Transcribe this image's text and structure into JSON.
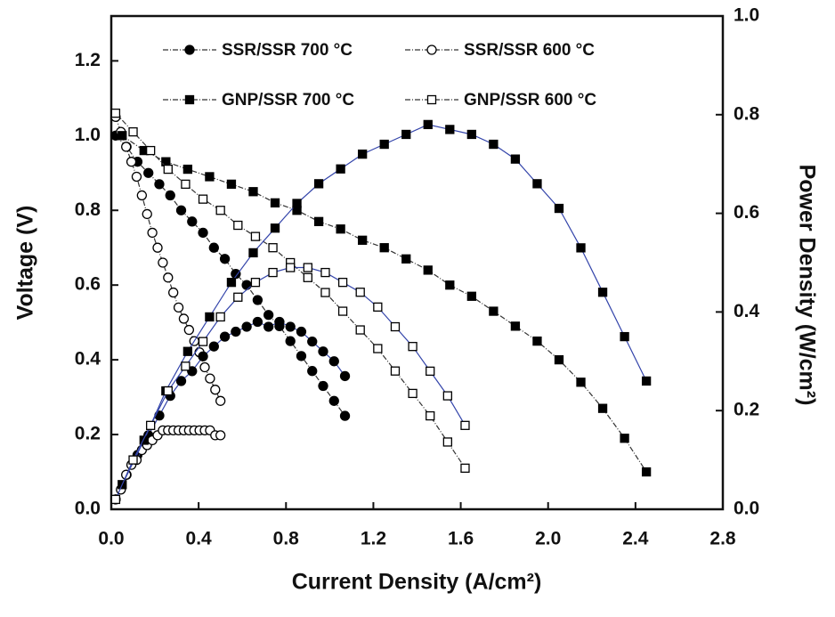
{
  "chart_data": {
    "type": "line",
    "x_label": "Current Density (A/cm²)",
    "y_label": "Voltage (V)",
    "y2_label": "Power Density (W/cm²)",
    "xlim": [
      0,
      2.8
    ],
    "ylim": [
      0,
      1.32
    ],
    "y2lim": [
      0,
      1.0
    ],
    "xticks": [
      {
        "value": 0,
        "label": "0.0"
      },
      0.4,
      0.8,
      1.2,
      1.6,
      {
        "value": 2,
        "label": "2.0"
      },
      2.4,
      2.8
    ],
    "yticks": [
      {
        "value": 0,
        "label": "0.0"
      },
      0.2,
      0.4,
      0.6,
      0.8,
      {
        "value": 1,
        "label": "1.0"
      },
      1.2
    ],
    "y2ticks": [
      {
        "value": 0,
        "label": "0.0"
      },
      0.2,
      0.4,
      0.6,
      0.8,
      {
        "value": 1,
        "label": "1.0"
      }
    ],
    "series": [
      {
        "name": "SSR/SSR 700 °C",
        "marker": "circle",
        "filled": true,
        "color": "#000000",
        "line_color": "#333333",
        "x": [
          0.02,
          0.07,
          0.12,
          0.17,
          0.22,
          0.27,
          0.32,
          0.37,
          0.42,
          0.47,
          0.52,
          0.57,
          0.62,
          0.67,
          0.72,
          0.77,
          0.82,
          0.87,
          0.92,
          0.97,
          1.02,
          1.07
        ],
        "values": [
          1.0,
          0.97,
          0.93,
          0.9,
          0.87,
          0.84,
          0.8,
          0.77,
          0.74,
          0.7,
          0.67,
          0.63,
          0.6,
          0.56,
          0.52,
          0.49,
          0.45,
          0.41,
          0.37,
          0.33,
          0.29,
          0.25
        ]
      },
      {
        "name": "SSR/SSR 600 °C",
        "marker": "circle",
        "filled": false,
        "color": "#000000",
        "line_color": "#333333",
        "x": [
          0.02,
          0.044,
          0.068,
          0.092,
          0.116,
          0.14,
          0.164,
          0.188,
          0.212,
          0.236,
          0.26,
          0.284,
          0.308,
          0.332,
          0.356,
          0.38,
          0.404,
          0.428,
          0.452,
          0.476,
          0.5
        ],
        "values": [
          1.05,
          1.01,
          0.97,
          0.93,
          0.89,
          0.84,
          0.79,
          0.74,
          0.7,
          0.66,
          0.62,
          0.58,
          0.54,
          0.51,
          0.48,
          0.45,
          0.42,
          0.38,
          0.35,
          0.32,
          0.29
        ]
      },
      {
        "name": "GNP/SSR 700 °C",
        "marker": "square",
        "filled": true,
        "color": "#000000",
        "line_color": "#333333",
        "x": [
          0.05,
          0.15,
          0.25,
          0.35,
          0.45,
          0.55,
          0.65,
          0.75,
          0.85,
          0.95,
          1.05,
          1.15,
          1.25,
          1.35,
          1.45,
          1.55,
          1.65,
          1.75,
          1.85,
          1.95,
          2.05,
          2.15,
          2.25,
          2.35,
          2.45
        ],
        "values": [
          1.0,
          0.96,
          0.93,
          0.91,
          0.89,
          0.87,
          0.85,
          0.82,
          0.8,
          0.77,
          0.75,
          0.72,
          0.7,
          0.67,
          0.64,
          0.6,
          0.57,
          0.53,
          0.49,
          0.45,
          0.4,
          0.34,
          0.27,
          0.19,
          0.1
        ]
      },
      {
        "name": "GNP/SSR 600 °C",
        "marker": "square",
        "filled": false,
        "color": "#000000",
        "line_color": "#333333",
        "x": [
          0.02,
          0.1,
          0.18,
          0.26,
          0.34,
          0.42,
          0.5,
          0.58,
          0.66,
          0.74,
          0.82,
          0.9,
          0.98,
          1.06,
          1.14,
          1.22,
          1.3,
          1.38,
          1.46,
          1.54,
          1.62
        ],
        "values": [
          1.06,
          1.01,
          0.96,
          0.91,
          0.87,
          0.83,
          0.8,
          0.76,
          0.73,
          0.7,
          0.66,
          0.62,
          0.58,
          0.53,
          0.48,
          0.43,
          0.37,
          0.31,
          0.25,
          0.18,
          0.11
        ]
      },
      {
        "axis": "y2",
        "marker": "circle",
        "filled": true,
        "color": "#000000",
        "line_color": "#3344aa",
        "x": [
          0.02,
          0.07,
          0.12,
          0.17,
          0.22,
          0.27,
          0.32,
          0.37,
          0.42,
          0.47,
          0.52,
          0.57,
          0.62,
          0.67,
          0.72,
          0.77,
          0.82,
          0.87,
          0.92,
          0.97,
          1.02,
          1.07
        ],
        "values": [
          0.02,
          0.07,
          0.11,
          0.15,
          0.19,
          0.23,
          0.26,
          0.28,
          0.31,
          0.33,
          0.35,
          0.36,
          0.37,
          0.38,
          0.37,
          0.38,
          0.37,
          0.36,
          0.34,
          0.32,
          0.3,
          0.27
        ]
      },
      {
        "axis": "y2",
        "marker": "circle",
        "filled": false,
        "color": "#000000",
        "line_color": "#3344aa",
        "x": [
          0.02,
          0.044,
          0.068,
          0.092,
          0.116,
          0.14,
          0.164,
          0.188,
          0.212,
          0.236,
          0.26,
          0.284,
          0.308,
          0.332,
          0.356,
          0.38,
          0.404,
          0.428,
          0.452,
          0.476,
          0.5
        ],
        "values": [
          0.02,
          0.04,
          0.07,
          0.09,
          0.1,
          0.12,
          0.13,
          0.14,
          0.15,
          0.16,
          0.16,
          0.16,
          0.16,
          0.16,
          0.16,
          0.16,
          0.16,
          0.16,
          0.16,
          0.15,
          0.15
        ]
      },
      {
        "axis": "y2",
        "marker": "square",
        "filled": true,
        "color": "#000000",
        "line_color": "#3344aa",
        "x": [
          0.05,
          0.15,
          0.25,
          0.35,
          0.45,
          0.55,
          0.65,
          0.75,
          0.85,
          0.95,
          1.05,
          1.15,
          1.25,
          1.35,
          1.45,
          1.55,
          1.65,
          1.75,
          1.85,
          1.95,
          2.05,
          2.15,
          2.25,
          2.35,
          2.45
        ],
        "values": [
          0.05,
          0.14,
          0.24,
          0.32,
          0.39,
          0.46,
          0.52,
          0.57,
          0.62,
          0.66,
          0.69,
          0.72,
          0.74,
          0.76,
          0.78,
          0.77,
          0.76,
          0.74,
          0.71,
          0.66,
          0.61,
          0.53,
          0.44,
          0.35,
          0.26
        ]
      },
      {
        "axis": "y2",
        "marker": "square",
        "filled": false,
        "color": "#000000",
        "line_color": "#3344aa",
        "x": [
          0.02,
          0.1,
          0.18,
          0.26,
          0.34,
          0.42,
          0.5,
          0.58,
          0.66,
          0.74,
          0.82,
          0.9,
          0.98,
          1.06,
          1.14,
          1.22,
          1.3,
          1.38,
          1.46,
          1.54,
          1.62
        ],
        "values": [
          0.02,
          0.1,
          0.17,
          0.24,
          0.29,
          0.34,
          0.39,
          0.43,
          0.46,
          0.48,
          0.49,
          0.49,
          0.48,
          0.46,
          0.44,
          0.41,
          0.37,
          0.33,
          0.28,
          0.23,
          0.17
        ]
      }
    ]
  }
}
